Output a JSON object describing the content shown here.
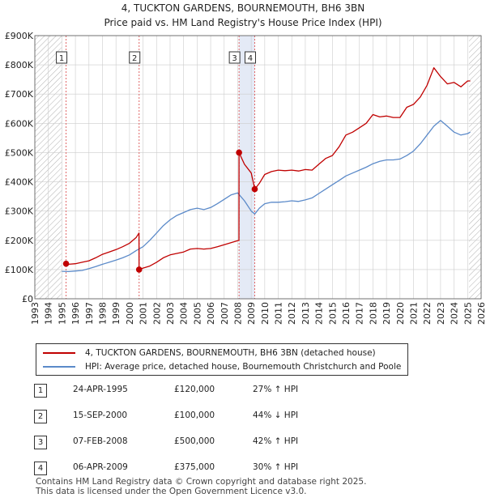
{
  "title": "4, TUCKTON GARDENS, BOURNEMOUTH, BH6 3BN",
  "subtitle": "Price paid vs. HM Land Registry's House Price Index (HPI)",
  "colors": {
    "price_paid": "#c00000",
    "hpi": "#5b8ac9",
    "shading": "#dde5f4",
    "vline": "#e06666",
    "grid": "#cccccc"
  },
  "legend": {
    "price_paid_label": "4, TUCKTON GARDENS, BOURNEMOUTH, BH6 3BN (detached house)",
    "hpi_label": "HPI: Average price, detached house, Bournemouth Christchurch and Poole"
  },
  "transactions": [
    {
      "num": "1",
      "date": "24-APR-1995",
      "price": "£120,000",
      "hpi": "27% ↑ HPI"
    },
    {
      "num": "2",
      "date": "15-SEP-2000",
      "price": "£100,000",
      "hpi": "44% ↓ HPI"
    },
    {
      "num": "3",
      "date": "07-FEB-2008",
      "price": "£500,000",
      "hpi": "42% ↑ HPI"
    },
    {
      "num": "4",
      "date": "06-APR-2009",
      "price": "£375,000",
      "hpi": "30% ↑ HPI"
    }
  ],
  "footer": {
    "line1": "Contains HM Land Registry data © Crown copyright and database right 2025.",
    "line2": "This data is licensed under the Open Government Licence v3.0."
  },
  "chart_data": {
    "type": "line",
    "title": "4, TUCKTON GARDENS, BOURNEMOUTH, BH6 3BN",
    "subtitle": "Price paid vs. HM Land Registry's House Price Index (HPI)",
    "xlim": [
      1993,
      2026
    ],
    "ylim": [
      0,
      900000
    ],
    "x_ticks": [
      1993,
      1994,
      1995,
      1996,
      1997,
      1998,
      1999,
      2000,
      2001,
      2002,
      2003,
      2004,
      2005,
      2006,
      2007,
      2008,
      2009,
      2010,
      2011,
      2012,
      2013,
      2014,
      2015,
      2016,
      2017,
      2018,
      2019,
      2020,
      2021,
      2022,
      2023,
      2024,
      2025,
      2026
    ],
    "y_ticks": [
      0,
      100000,
      200000,
      300000,
      400000,
      500000,
      600000,
      700000,
      800000,
      900000
    ],
    "y_tick_labels": [
      "£0",
      "£100K",
      "£200K",
      "£300K",
      "£400K",
      "£500K",
      "£600K",
      "£700K",
      "£800K",
      "£900K"
    ],
    "hatched_ranges": [
      [
        1993,
        1995.0
      ],
      [
        2025.1,
        2026
      ]
    ],
    "sale_markers": [
      {
        "label": "1",
        "x": 1995.31,
        "y": 120000
      },
      {
        "label": "2",
        "x": 2000.71,
        "y": 100000
      },
      {
        "label": "3",
        "x": 2008.1,
        "y": 500000
      },
      {
        "label": "4",
        "x": 2009.26,
        "y": 375000
      }
    ],
    "shaded_spans": [
      [
        2008.1,
        2009.26
      ]
    ],
    "series": [
      {
        "name": "4, TUCKTON GARDENS, BOURNEMOUTH, BH6 3BN (detached house)",
        "x": [
          1995.31,
          1995.5,
          1996,
          1996.5,
          1997,
          1997.5,
          1998,
          1998.5,
          1999,
          1999.5,
          2000,
          2000.5,
          2000.7,
          2000.71,
          2001,
          2001.5,
          2002,
          2002.5,
          2003,
          2003.5,
          2004,
          2004.5,
          2005,
          2005.5,
          2006,
          2006.5,
          2007,
          2007.5,
          2008.09,
          2008.1,
          2008.5,
          2009,
          2009.26,
          2009.6,
          2010,
          2010.5,
          2011,
          2011.5,
          2012,
          2012.5,
          2013,
          2013.5,
          2014,
          2014.5,
          2015,
          2015.5,
          2016,
          2016.5,
          2017,
          2017.5,
          2018,
          2018.5,
          2019,
          2019.5,
          2020,
          2020.5,
          2021,
          2021.5,
          2022,
          2022.5,
          2023,
          2023.5,
          2024,
          2024.5,
          2025,
          2025.2
        ],
        "values": [
          120000,
          118000,
          120000,
          125000,
          130000,
          140000,
          152000,
          160000,
          168000,
          178000,
          190000,
          210000,
          225000,
          100000,
          105000,
          112000,
          125000,
          140000,
          150000,
          155000,
          160000,
          170000,
          172000,
          170000,
          172000,
          178000,
          185000,
          192000,
          200000,
          500000,
          460000,
          430000,
          375000,
          395000,
          425000,
          435000,
          440000,
          438000,
          440000,
          437000,
          442000,
          440000,
          460000,
          480000,
          490000,
          520000,
          560000,
          570000,
          585000,
          600000,
          630000,
          622000,
          625000,
          620000,
          620000,
          655000,
          665000,
          690000,
          730000,
          790000,
          760000,
          735000,
          740000,
          725000,
          745000,
          745000
        ]
      },
      {
        "name": "HPI: Average price, detached house, Bournemouth Christchurch and Poole",
        "x": [
          1995.0,
          1995.5,
          1996,
          1996.5,
          1997,
          1997.5,
          1998,
          1998.5,
          1999,
          1999.5,
          2000,
          2000.5,
          2001,
          2001.5,
          2002,
          2002.5,
          2003,
          2003.5,
          2004,
          2004.5,
          2005,
          2005.5,
          2006,
          2006.5,
          2007,
          2007.5,
          2008,
          2008.5,
          2009,
          2009.26,
          2009.6,
          2010,
          2010.5,
          2011,
          2011.5,
          2012,
          2012.5,
          2013,
          2013.5,
          2014,
          2014.5,
          2015,
          2015.5,
          2016,
          2016.5,
          2017,
          2017.5,
          2018,
          2018.5,
          2019,
          2019.5,
          2020,
          2020.5,
          2021,
          2021.5,
          2022,
          2022.5,
          2023,
          2023.5,
          2024,
          2024.5,
          2025,
          2025.2
        ],
        "values": [
          94000,
          93000,
          95000,
          97000,
          103000,
          110000,
          118000,
          125000,
          132000,
          140000,
          150000,
          165000,
          178000,
          200000,
          225000,
          250000,
          270000,
          285000,
          295000,
          305000,
          310000,
          305000,
          312000,
          325000,
          340000,
          355000,
          362000,
          335000,
          300000,
          290000,
          310000,
          325000,
          330000,
          330000,
          332000,
          335000,
          333000,
          338000,
          345000,
          360000,
          375000,
          390000,
          405000,
          420000,
          430000,
          440000,
          450000,
          462000,
          470000,
          475000,
          475000,
          478000,
          490000,
          505000,
          530000,
          560000,
          590000,
          610000,
          590000,
          570000,
          560000,
          565000,
          570000
        ]
      }
    ]
  }
}
